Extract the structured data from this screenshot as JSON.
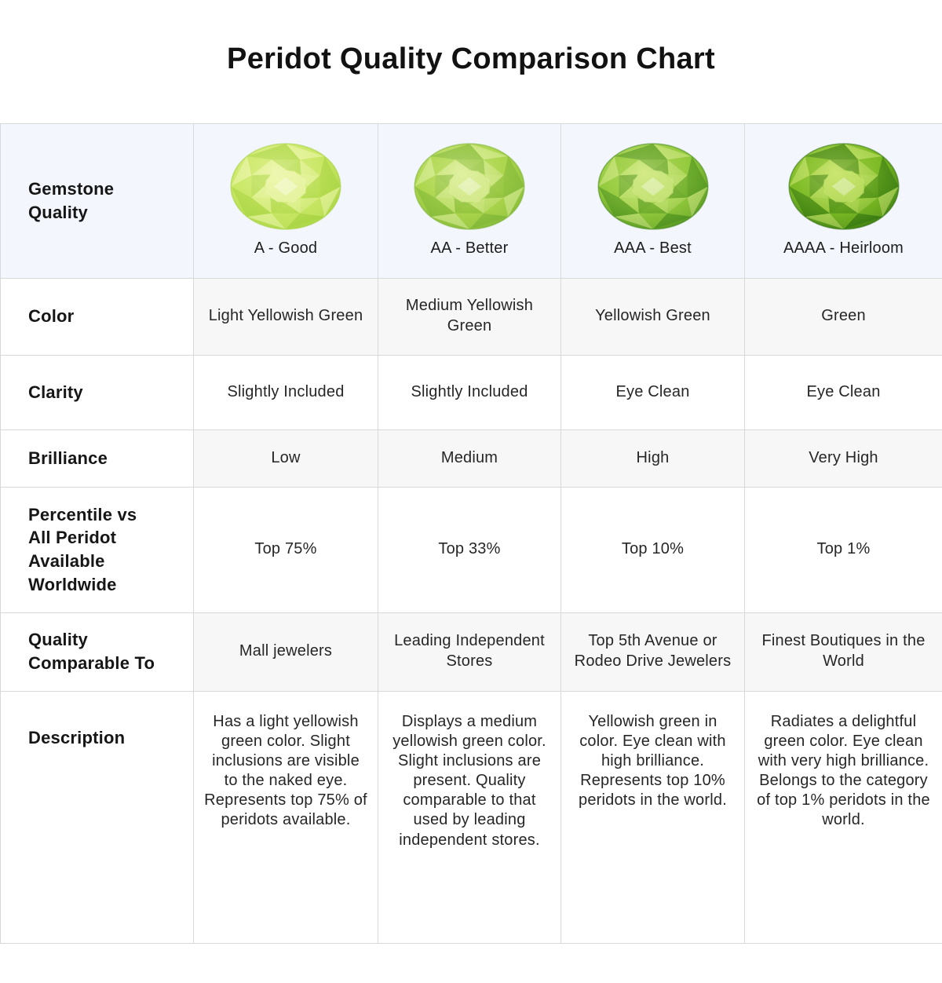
{
  "title": "Peridot Quality Comparison Chart",
  "colors": {
    "header_bg": "#f3f6fc",
    "shaded_row_bg": "#f7f7f7",
    "grid_line": "#d9d9d9",
    "text": "#262626"
  },
  "table": {
    "corner_label": "Gemstone Quality",
    "columns": [
      {
        "grade": "A - Good",
        "gem": {
          "light": "#eef7b0",
          "base": "#c9e765",
          "dark": "#a3d13e"
        }
      },
      {
        "grade": "AA - Better",
        "gem": {
          "light": "#dff0a0",
          "base": "#abd54c",
          "dark": "#7cb335"
        }
      },
      {
        "grade": "AAA - Best",
        "gem": {
          "light": "#d3ea88",
          "base": "#93ca3c",
          "dark": "#44891c"
        }
      },
      {
        "grade": "AAAA - Heirloom",
        "gem": {
          "light": "#cbe671",
          "base": "#7cba24",
          "dark": "#2e7010"
        }
      }
    ],
    "rows": [
      {
        "label": "Color",
        "cells": [
          "Light Yellowish Green",
          "Medium Yellowish Green",
          "Yellowish Green",
          "Green"
        ]
      },
      {
        "label": "Clarity",
        "cells": [
          "Slightly Included",
          "Slightly Included",
          "Eye Clean",
          "Eye Clean"
        ]
      },
      {
        "label": "Brilliance",
        "cells": [
          "Low",
          "Medium",
          "High",
          "Very High"
        ]
      },
      {
        "label": "Percentile vs All Peridot Available Worldwide",
        "cells": [
          "Top 75%",
          "Top 33%",
          "Top 10%",
          "Top 1%"
        ]
      },
      {
        "label": "Quality Comparable To",
        "cells": [
          "Mall jewelers",
          "Leading Independent Stores",
          "Top 5th Avenue or Rodeo Drive Jewelers",
          "Finest Boutiques in the World"
        ]
      },
      {
        "label": "Description",
        "cells": [
          "Has a light yellowish green color. Slight inclusions are visible to the naked eye. Represents top 75% of peridots available.",
          "Displays a medium yellowish green color. Slight inclusions are present. Quality comparable to that used by leading independent stores.",
          "Yellowish green in color. Eye clean with high brilliance. Represents top 10% peridots in the world.",
          "Radiates a delightful green color. Eye clean with very high brilliance. Belongs to the category of top 1% peridots in the world."
        ]
      }
    ]
  },
  "chart_data": {
    "type": "table",
    "title": "Peridot Quality Comparison Chart",
    "columns": [
      "A - Good",
      "AA - Better",
      "AAA - Best",
      "AAAA - Heirloom"
    ],
    "rows": [
      {
        "attribute": "Color",
        "values": [
          "Light Yellowish Green",
          "Medium Yellowish Green",
          "Yellowish Green",
          "Green"
        ]
      },
      {
        "attribute": "Clarity",
        "values": [
          "Slightly Included",
          "Slightly Included",
          "Eye Clean",
          "Eye Clean"
        ]
      },
      {
        "attribute": "Brilliance",
        "values": [
          "Low",
          "Medium",
          "High",
          "Very High"
        ]
      },
      {
        "attribute": "Percentile vs All Peridot Available Worldwide",
        "values": [
          "Top 75%",
          "Top 33%",
          "Top 10%",
          "Top 1%"
        ]
      },
      {
        "attribute": "Quality Comparable To",
        "values": [
          "Mall jewelers",
          "Leading Independent Stores",
          "Top 5th Avenue or Rodeo Drive Jewelers",
          "Finest Boutiques in the World"
        ]
      },
      {
        "attribute": "Description",
        "values": [
          "Has a light yellowish green color. Slight inclusions are visible to the naked eye. Represents top 75% of peridots available.",
          "Displays a medium yellowish green color. Slight inclusions are present. Quality comparable to that used by leading independent stores.",
          "Yellowish green in color. Eye clean with high brilliance. Represents top 10% peridots in the world.",
          "Radiates a delightful green color. Eye clean with very high brilliance. Belongs to the category of top 1% peridots in the world."
        ]
      }
    ]
  }
}
